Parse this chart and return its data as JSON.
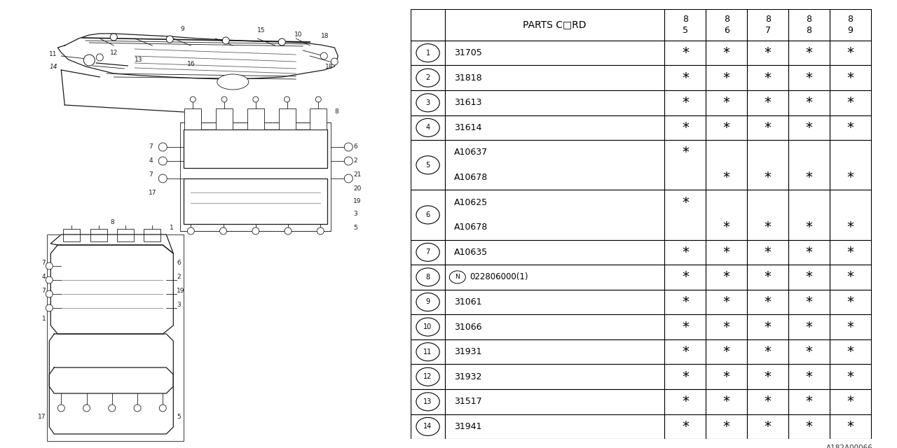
{
  "watermark": "A182A00066",
  "table": {
    "header_col": "PARTS C□RD",
    "year_cols": [
      [
        "8",
        "5"
      ],
      [
        "8",
        "6"
      ],
      [
        "8",
        "7"
      ],
      [
        "8",
        "8"
      ],
      [
        "8",
        "9"
      ]
    ],
    "grouped_rows": [
      {
        "ref": "1",
        "parts": [
          {
            "name": "31705",
            "vals": [
              1,
              1,
              1,
              1,
              1
            ]
          }
        ]
      },
      {
        "ref": "2",
        "parts": [
          {
            "name": "31818",
            "vals": [
              1,
              1,
              1,
              1,
              1
            ]
          }
        ]
      },
      {
        "ref": "3",
        "parts": [
          {
            "name": "31613",
            "vals": [
              1,
              1,
              1,
              1,
              1
            ]
          }
        ]
      },
      {
        "ref": "4",
        "parts": [
          {
            "name": "31614",
            "vals": [
              1,
              1,
              1,
              1,
              1
            ]
          }
        ]
      },
      {
        "ref": "5",
        "parts": [
          {
            "name": "A10637",
            "vals": [
              1,
              0,
              0,
              0,
              0
            ]
          },
          {
            "name": "A10678",
            "vals": [
              0,
              1,
              1,
              1,
              1
            ]
          }
        ]
      },
      {
        "ref": "6",
        "parts": [
          {
            "name": "A10625",
            "vals": [
              1,
              0,
              0,
              0,
              0
            ]
          },
          {
            "name": "A10678",
            "vals": [
              0,
              1,
              1,
              1,
              1
            ]
          }
        ]
      },
      {
        "ref": "7",
        "parts": [
          {
            "name": "A10635",
            "vals": [
              1,
              1,
              1,
              1,
              1
            ]
          }
        ]
      },
      {
        "ref": "8",
        "parts": [
          {
            "name": "N022806000(1)",
            "vals": [
              1,
              1,
              1,
              1,
              1
            ]
          }
        ]
      },
      {
        "ref": "9",
        "parts": [
          {
            "name": "31061",
            "vals": [
              1,
              1,
              1,
              1,
              1
            ]
          }
        ]
      },
      {
        "ref": "10",
        "parts": [
          {
            "name": "31066",
            "vals": [
              1,
              1,
              1,
              1,
              1
            ]
          }
        ]
      },
      {
        "ref": "11",
        "parts": [
          {
            "name": "31931",
            "vals": [
              1,
              1,
              1,
              1,
              1
            ]
          }
        ]
      },
      {
        "ref": "12",
        "parts": [
          {
            "name": "31932",
            "vals": [
              1,
              1,
              1,
              1,
              1
            ]
          }
        ]
      },
      {
        "ref": "13",
        "parts": [
          {
            "name": "31517",
            "vals": [
              1,
              1,
              1,
              1,
              1
            ]
          }
        ]
      },
      {
        "ref": "14",
        "parts": [
          {
            "name": "31941",
            "vals": [
              1,
              1,
              1,
              1,
              1
            ]
          }
        ]
      }
    ]
  },
  "bg_color": "#ffffff",
  "lc": "#1a1a1a",
  "fig_width": 12.8,
  "fig_height": 6.4,
  "dpi": 100
}
